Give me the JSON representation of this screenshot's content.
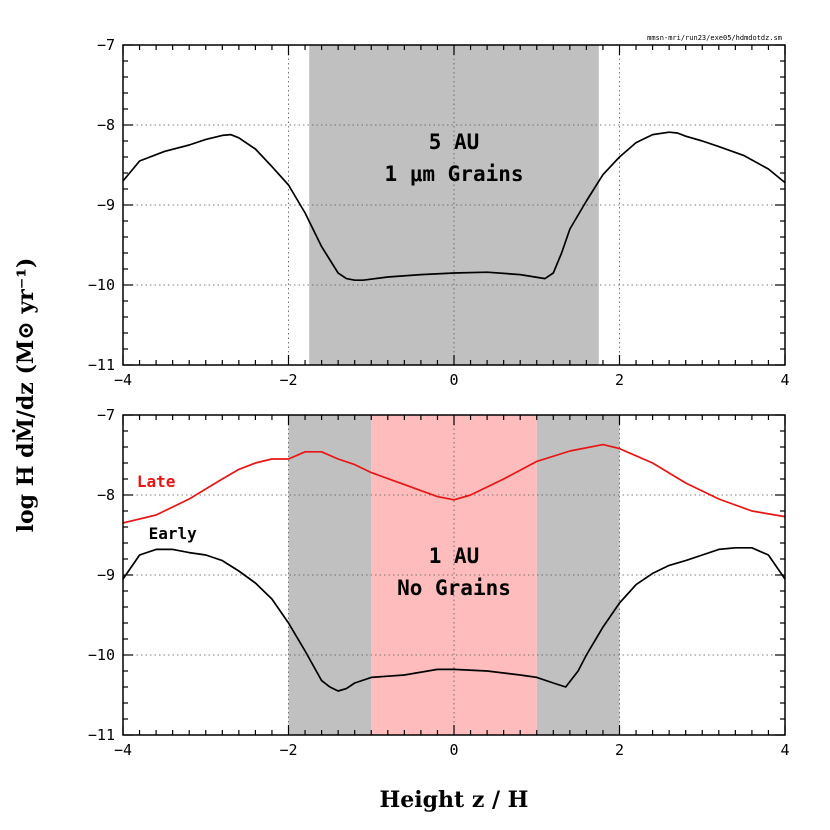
{
  "source_label": "mmsn-mri/run23/exe05/hdmdotdz.sm",
  "xlabel": "Height z / H",
  "ylabel": "log H dṀ/dz  (M⊙ yr⁻¹)",
  "colors": {
    "early": "#000000",
    "late": "#e81515",
    "gray_band": "#c0c0c0",
    "pink_band": "#ffbcbc"
  },
  "chart_data": [
    {
      "type": "line",
      "panel": "top",
      "xlim": [
        -4,
        4
      ],
      "ylim": [
        -11,
        -7
      ],
      "xticks": [
        -4,
        -2,
        0,
        2,
        4
      ],
      "xtick_labels": [
        "−4",
        "−2",
        "0",
        "2",
        "4"
      ],
      "yticks": [
        -11,
        -10,
        -9,
        -8,
        -7
      ],
      "ytick_labels": [
        "−11",
        "−10",
        "−9",
        "−8",
        "−7"
      ],
      "grid": true,
      "annotation_line1": "5 AU",
      "annotation_line2": "1 μm Grains",
      "bands": [
        {
          "x0": -1.75,
          "x1": 1.75,
          "color": "gray"
        }
      ],
      "series": [
        {
          "x": [
            -4.0,
            -3.8,
            -3.5,
            -3.2,
            -3.0,
            -2.8,
            -2.7,
            -2.6,
            -2.4,
            -2.2,
            -2.0,
            -1.8,
            -1.6,
            -1.4,
            -1.3,
            -1.2,
            -1.1,
            -0.8,
            -0.4,
            0.0,
            0.4,
            0.8,
            1.1,
            1.2,
            1.3,
            1.4,
            1.6,
            1.8,
            2.0,
            2.2,
            2.4,
            2.6,
            2.7,
            2.8,
            3.0,
            3.2,
            3.5,
            3.8,
            4.0
          ],
          "y": [
            -8.7,
            -8.45,
            -8.33,
            -8.25,
            -8.18,
            -8.13,
            -8.12,
            -8.16,
            -8.3,
            -8.52,
            -8.75,
            -9.1,
            -9.52,
            -9.85,
            -9.92,
            -9.94,
            -9.94,
            -9.9,
            -9.87,
            -9.85,
            -9.84,
            -9.87,
            -9.92,
            -9.85,
            -9.6,
            -9.3,
            -8.95,
            -8.62,
            -8.4,
            -8.22,
            -8.12,
            -8.09,
            -8.1,
            -8.14,
            -8.2,
            -8.27,
            -8.38,
            -8.55,
            -8.72
          ]
        }
      ]
    },
    {
      "type": "line",
      "panel": "bottom",
      "xlim": [
        -4,
        4
      ],
      "ylim": [
        -11,
        -7
      ],
      "xticks": [
        -4,
        -2,
        0,
        2,
        4
      ],
      "xtick_labels": [
        "−4",
        "−2",
        "0",
        "2",
        "4"
      ],
      "yticks": [
        -11,
        -10,
        -9,
        -8,
        -7
      ],
      "ytick_labels": [
        "−11",
        "−10",
        "−9",
        "−8",
        "−7"
      ],
      "grid": true,
      "annotation_line1": "1 AU",
      "annotation_line2": "No Grains",
      "bands": [
        {
          "x0": -2.0,
          "x1": -1.0,
          "color": "gray"
        },
        {
          "x0": -1.0,
          "x1": 1.0,
          "color": "pink"
        },
        {
          "x0": 1.0,
          "x1": 2.0,
          "color": "gray"
        }
      ],
      "series": [
        {
          "name": "Late",
          "color_key": "late",
          "label_x": -3.6,
          "label_y": -7.9,
          "x": [
            -4.0,
            -3.6,
            -3.2,
            -2.8,
            -2.6,
            -2.4,
            -2.2,
            -2.0,
            -1.8,
            -1.6,
            -1.4,
            -1.2,
            -1.0,
            -0.6,
            -0.2,
            0.0,
            0.2,
            0.6,
            1.0,
            1.4,
            1.8,
            2.0,
            2.4,
            2.8,
            3.2,
            3.6,
            4.0
          ],
          "y": [
            -8.35,
            -8.25,
            -8.05,
            -7.8,
            -7.68,
            -7.6,
            -7.55,
            -7.55,
            -7.46,
            -7.46,
            -7.55,
            -7.62,
            -7.72,
            -7.87,
            -8.02,
            -8.06,
            -8.0,
            -7.8,
            -7.58,
            -7.45,
            -7.37,
            -7.42,
            -7.6,
            -7.85,
            -8.05,
            -8.2,
            -8.27
          ]
        },
        {
          "name": "Early",
          "color_key": "early",
          "label_x": -3.4,
          "label_y": -8.55,
          "x": [
            -4.0,
            -3.8,
            -3.6,
            -3.4,
            -3.2,
            -3.0,
            -2.8,
            -2.6,
            -2.4,
            -2.2,
            -2.0,
            -1.8,
            -1.6,
            -1.5,
            -1.4,
            -1.3,
            -1.2,
            -1.0,
            -0.6,
            -0.2,
            0.0,
            0.4,
            0.8,
            1.0,
            1.2,
            1.35,
            1.5,
            1.6,
            1.8,
            2.0,
            2.2,
            2.4,
            2.6,
            2.8,
            3.0,
            3.2,
            3.4,
            3.6,
            3.8,
            4.0
          ],
          "y": [
            -9.05,
            -8.75,
            -8.68,
            -8.68,
            -8.72,
            -8.75,
            -8.82,
            -8.95,
            -9.1,
            -9.3,
            -9.6,
            -9.95,
            -10.32,
            -10.4,
            -10.45,
            -10.42,
            -10.35,
            -10.28,
            -10.25,
            -10.18,
            -10.18,
            -10.2,
            -10.25,
            -10.28,
            -10.35,
            -10.4,
            -10.2,
            -10.0,
            -9.65,
            -9.35,
            -9.12,
            -8.98,
            -8.88,
            -8.82,
            -8.75,
            -8.68,
            -8.66,
            -8.66,
            -8.75,
            -9.05
          ]
        }
      ]
    }
  ]
}
